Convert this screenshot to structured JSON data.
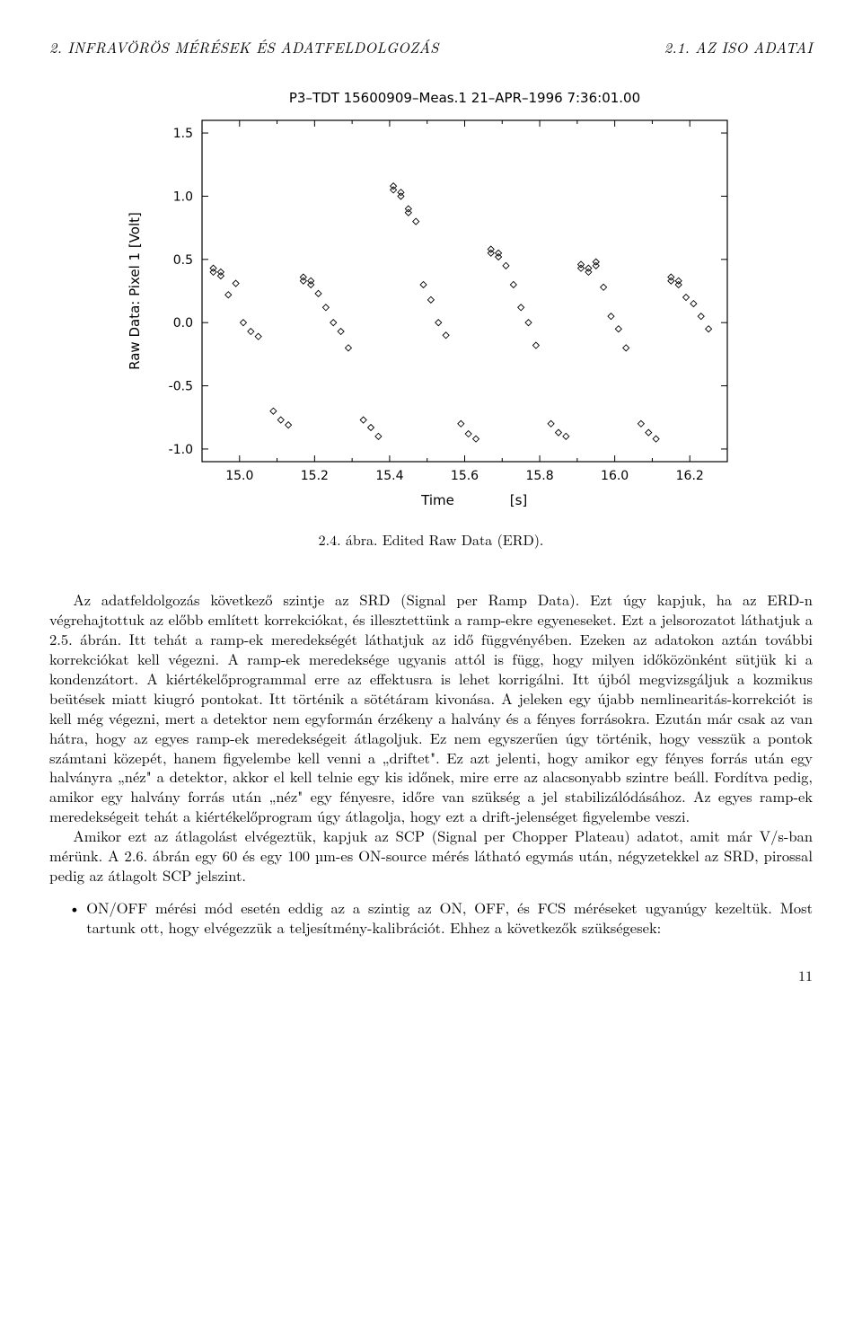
{
  "header": {
    "left": "2. INFRAVÖRÖS MÉRÉSEK ÉS ADATFELDOLGOZÁS",
    "right": "2.1. AZ ISO ADATAI"
  },
  "figure": {
    "title": "P3–TDT 15600909–Meas.1    21–APR–1996   7:36:01.00",
    "ylabel": "Raw Data: Pixel 1    [Volt]",
    "xlabel": "Time      [s]",
    "xlim": [
      14.9,
      16.3
    ],
    "ylim": [
      -1.1,
      1.6
    ],
    "xticks": [
      15.0,
      15.2,
      15.4,
      15.6,
      15.8,
      16.0,
      16.2
    ],
    "yticks": [
      -1.0,
      -0.5,
      0.0,
      0.5,
      1.0,
      1.5
    ],
    "xtick_labels": [
      "15.0",
      "15.2",
      "15.4",
      "15.6",
      "15.8",
      "16.0",
      "16.2"
    ],
    "ytick_labels": [
      "-1.0",
      "-0.5",
      "0.0",
      "0.5",
      "1.0",
      "1.5"
    ],
    "title_fontsize": 15,
    "label_fontsize": 15,
    "tick_fontsize": 14,
    "marker": "diamond",
    "marker_color": "#000000",
    "marker_size": 7,
    "box_color": "#000000",
    "points_cluster1": [
      [
        14.93,
        0.4
      ],
      [
        14.95,
        0.37
      ],
      [
        14.97,
        0.22
      ],
      [
        14.99,
        0.31
      ],
      [
        15.01,
        0.0
      ],
      [
        15.03,
        -0.07
      ],
      [
        15.05,
        -0.11
      ],
      [
        15.09,
        -0.7
      ],
      [
        15.11,
        -0.77
      ],
      [
        15.13,
        -0.81
      ],
      [
        15.17,
        0.33
      ],
      [
        15.19,
        0.3
      ],
      [
        15.21,
        0.23
      ],
      [
        15.23,
        0.12
      ],
      [
        15.25,
        0.0
      ],
      [
        15.27,
        -0.07
      ],
      [
        15.29,
        -0.2
      ],
      [
        15.33,
        -0.77
      ],
      [
        15.35,
        -0.83
      ],
      [
        15.37,
        -0.9
      ],
      [
        15.41,
        1.05
      ],
      [
        15.43,
        1.0
      ],
      [
        15.45,
        0.87
      ],
      [
        15.47,
        0.8
      ],
      [
        15.49,
        0.3
      ],
      [
        15.51,
        0.18
      ],
      [
        15.53,
        0.0
      ],
      [
        15.55,
        -0.1
      ],
      [
        15.59,
        -0.8
      ],
      [
        15.61,
        -0.88
      ],
      [
        15.63,
        -0.92
      ],
      [
        15.67,
        0.55
      ],
      [
        15.69,
        0.52
      ],
      [
        15.71,
        0.45
      ],
      [
        15.73,
        0.3
      ],
      [
        15.75,
        0.12
      ],
      [
        15.77,
        0.0
      ],
      [
        15.79,
        -0.18
      ],
      [
        15.83,
        -0.8
      ],
      [
        15.85,
        -0.87
      ],
      [
        15.87,
        -0.9
      ],
      [
        15.91,
        0.43
      ],
      [
        15.93,
        0.4
      ],
      [
        15.95,
        0.45
      ],
      [
        15.97,
        0.28
      ],
      [
        15.99,
        0.05
      ],
      [
        16.01,
        -0.05
      ],
      [
        16.03,
        -0.2
      ],
      [
        16.07,
        -0.8
      ],
      [
        16.09,
        -0.87
      ],
      [
        16.11,
        -0.92
      ],
      [
        16.15,
        0.33
      ],
      [
        16.17,
        0.3
      ],
      [
        16.19,
        0.2
      ],
      [
        16.21,
        0.15
      ],
      [
        16.23,
        0.05
      ],
      [
        16.25,
        -0.05
      ]
    ],
    "points_cluster2": [
      [
        14.93,
        0.43
      ],
      [
        14.95,
        0.4
      ],
      [
        15.17,
        0.36
      ],
      [
        15.19,
        0.33
      ],
      [
        15.41,
        1.08
      ],
      [
        15.43,
        1.03
      ],
      [
        15.45,
        0.9
      ],
      [
        15.67,
        0.58
      ],
      [
        15.69,
        0.55
      ],
      [
        15.91,
        0.46
      ],
      [
        15.93,
        0.43
      ],
      [
        15.95,
        0.48
      ],
      [
        16.15,
        0.36
      ],
      [
        16.17,
        0.33
      ]
    ],
    "caption": "2.4. ábra. Edited Raw Data (ERD)."
  },
  "body": {
    "p1": "Az adatfeldolgozás következő szintje az SRD (Signal per Ramp Data). Ezt úgy kapjuk, ha az ERD-n végrehajtottuk az előbb említett korrekciókat, és illesztettünk a ramp-ekre egyeneseket. Ezt a jelsorozatot láthatjuk a 2.5. ábrán. Itt tehát a ramp-ek meredekségét láthatjuk az idő függvényében. Ezeken az adatokon aztán további korrekciókat kell végezni. A ramp-ek meredeksége ugyanis attól is függ, hogy milyen időközönként sütjük ki a kondenzátort. A kiértékelőprogrammal erre az effektusra is lehet korrigálni. Itt újból megvizsgáljuk a kozmikus beütések miatt kiugró pontokat. Itt történik a sötétáram kivonása. A jeleken egy újabb nemlinearitás-korrekciót is kell még végezni, mert a detektor nem egyformán érzékeny a halvány és a fényes forrásokra. Ezután már csak az van hátra, hogy az egyes ramp-ek meredekségeit átlagoljuk. Ez nem egyszerűen úgy történik, hogy vesszük a pontok számtani közepét, hanem figyelembe kell venni a „driftet\". Ez azt jelenti, hogy amikor egy fényes forrás után egy halványra „néz\" a detektor, akkor el kell telnie egy kis időnek, mire erre az alacsonyabb szintre beáll. Fordítva pedig, amikor egy halvány forrás után „néz\" egy fényesre, időre van szükség a jel stabilizálódásához. Az egyes ramp-ek meredekségeit tehát a kiértékelőprogram úgy átlagolja, hogy ezt a drift-jelenséget figyelembe veszi.",
    "p2": "Amikor ezt az átlagolást elvégeztük, kapjuk az SCP (Signal per Chopper Plateau) adatot, amit már V/s-ban mérünk. A 2.6. ábrán egy 60 és egy 100 µm-es ON-source mérés látható egymás után, négyzetekkel az SRD, pirossal pedig az átlagolt SCP jelszint.",
    "bullet1": "ON/OFF mérési mód esetén eddig az a szintig az ON, OFF, és FCS méréseket ugyanúgy kezeltük. Most tartunk ott, hogy elvégezzük a teljesítmény-kalibrációt. Ehhez a következők szükségesek:"
  },
  "page_number": "11"
}
